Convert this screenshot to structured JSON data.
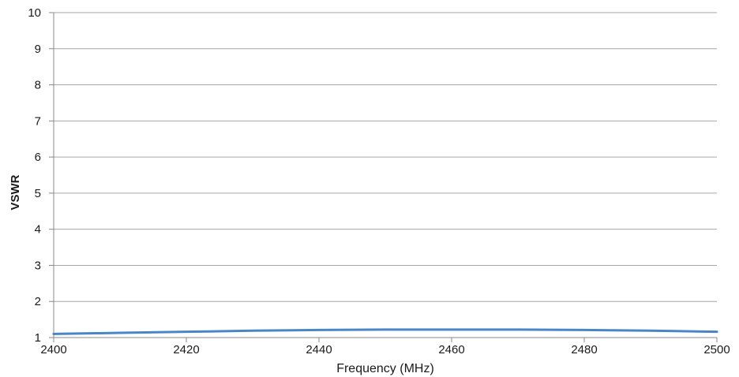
{
  "chart_data": {
    "type": "line",
    "title": "",
    "xlabel": "Frequency (MHz)",
    "ylabel": "VSWR",
    "xlim": [
      2400,
      2500
    ],
    "ylim": [
      1,
      10
    ],
    "x_ticks": [
      "2400",
      "2420",
      "2440",
      "2460",
      "2480",
      "2500"
    ],
    "y_ticks": [
      "1",
      "2",
      "3",
      "4",
      "5",
      "6",
      "7",
      "8",
      "9",
      "10"
    ],
    "grid": "horizontal",
    "legend": "none",
    "series": [
      {
        "color": "#4a86c5",
        "x": [
          2400,
          2410,
          2420,
          2430,
          2440,
          2450,
          2460,
          2470,
          2480,
          2490,
          2500
        ],
        "y": [
          1.1,
          1.13,
          1.16,
          1.19,
          1.21,
          1.22,
          1.22,
          1.22,
          1.21,
          1.19,
          1.16
        ]
      }
    ]
  }
}
